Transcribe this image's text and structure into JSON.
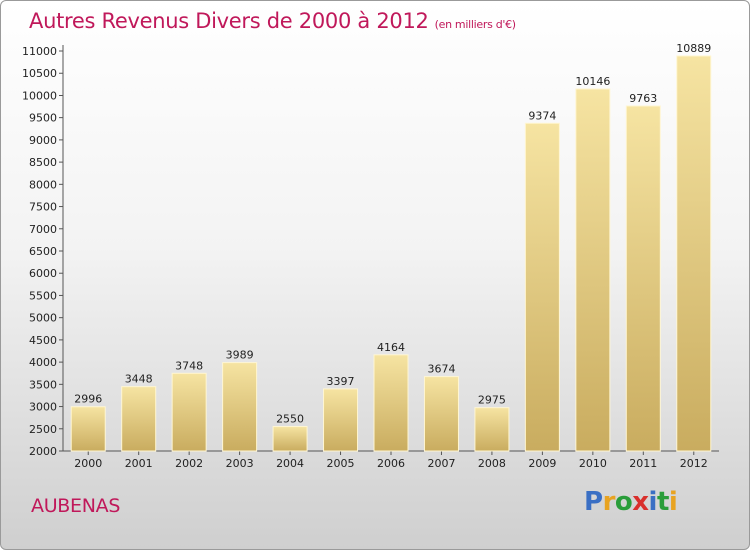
{
  "title": "Autres Revenus Divers de 2000 à 2012",
  "title_unit": "(en milliers d'€)",
  "city": "AUBENAS",
  "logo": {
    "text": "Proxiti",
    "colors": [
      "#3a6fc4",
      "#e8a321",
      "#2a9d3a",
      "#d9302c",
      "#3a6fc4",
      "#2a9d3a",
      "#e8a321"
    ]
  },
  "colors": {
    "title": "#c0185a",
    "bar_light": "#f6e4a2",
    "bar_dark": "#c9ac5f",
    "axis": "#555555"
  },
  "chart_data": {
    "type": "bar",
    "categories": [
      "2000",
      "2001",
      "2002",
      "2003",
      "2004",
      "2005",
      "2006",
      "2007",
      "2008",
      "2009",
      "2010",
      "2011",
      "2012"
    ],
    "values": [
      2996,
      3448,
      3748,
      3989,
      2550,
      3397,
      4164,
      3674,
      2975,
      9374,
      10146,
      9763,
      10889
    ],
    "data_labels": [
      "2996",
      "3448",
      "3748",
      "3989",
      "2550",
      "3397",
      "4164",
      "3674",
      "2975",
      "9374",
      "10146",
      "9763",
      "10889"
    ],
    "y_ticks": [
      "2000",
      "2500",
      "3000",
      "3500",
      "4000",
      "4500",
      "5000",
      "5500",
      "6000",
      "6500",
      "7000",
      "7500",
      "8000",
      "8500",
      "9000",
      "9500",
      "10000",
      "10500",
      "11000"
    ],
    "ylim": [
      2000,
      11000
    ],
    "grid": false,
    "legend": "none"
  }
}
